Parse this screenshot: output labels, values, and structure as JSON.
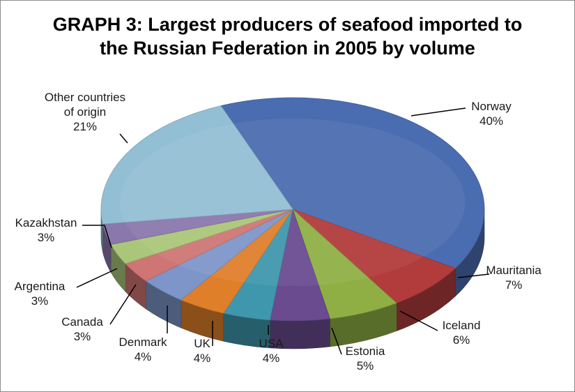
{
  "chart_data": {
    "type": "pie",
    "title_line1": "GRAPH 3: Largest producers of seafood imported to",
    "title_line2": "the Russian Federation in 2005 by volume",
    "slices": [
      {
        "label": "Norway",
        "pct_label": "40%",
        "value": 40,
        "color": "#4a6cb0"
      },
      {
        "label": "Mauritania",
        "pct_label": "7%",
        "value": 7,
        "color": "#b23b3b"
      },
      {
        "label": "Iceland",
        "pct_label": "6%",
        "value": 6,
        "color": "#8faf45"
      },
      {
        "label": "Estonia",
        "pct_label": "5%",
        "value": 5,
        "color": "#6a4b90"
      },
      {
        "label": "USA",
        "pct_label": "4%",
        "value": 4,
        "color": "#3f97ad"
      },
      {
        "label": "UK",
        "pct_label": "4%",
        "value": 4,
        "color": "#e07f2a"
      },
      {
        "label": "Denmark",
        "pct_label": "4%",
        "value": 4,
        "color": "#7d95c8"
      },
      {
        "label": "Canada",
        "pct_label": "3%",
        "value": 3,
        "color": "#cf7574"
      },
      {
        "label": "Argentina",
        "pct_label": "3%",
        "value": 3,
        "color": "#aac67a"
      },
      {
        "label": "Kazakhstan",
        "pct_label": "3%",
        "value": 3,
        "color": "#8a78ac"
      },
      {
        "label": "Other countries of origin",
        "label_lines": [
          "Other countries",
          "of origin"
        ],
        "pct_label": "21%",
        "value": 21,
        "color": "#93bfd4"
      }
    ]
  }
}
